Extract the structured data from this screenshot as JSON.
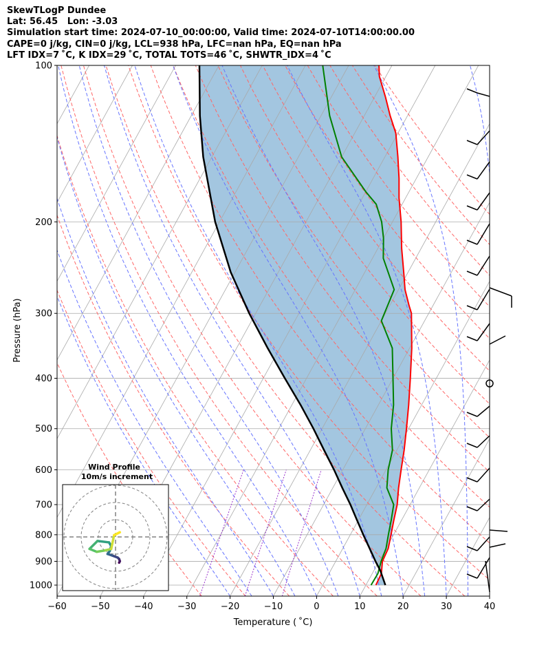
{
  "header": {
    "line1": "SkewTLogP Dundee",
    "line2": "Lat: 56.45   Lon: -3.03",
    "line3": "Simulation start time: 2024-07-10_00:00:00, Valid time: 2024-07-10T14:00:00.00",
    "line4": "CAPE=0 j/kg, CIN=0 j/kg, LCL=938 hPa, LFC=nan hPa, EQ=nan hPa",
    "line5": "LFT IDX=7 ˚C, K IDX=29 ˚C, TOTAL TOTS=46 ˚C, SHWTR_IDX=4 ˚C"
  },
  "chart_data": {
    "type": "line",
    "title": "SkewTLogP Dundee",
    "xlabel": "Temperature ( ˚C)",
    "ylabel": "Pressure (hPa)",
    "xlim": [
      -60,
      40
    ],
    "ylim": [
      1050,
      100
    ],
    "y_scale": "log",
    "x_ticks": [
      "−60",
      "−50",
      "−40",
      "−30",
      "−20",
      "−10",
      "0",
      "10",
      "20",
      "30",
      "40"
    ],
    "x_tick_values": [
      -60,
      -50,
      -40,
      -30,
      -20,
      -10,
      0,
      10,
      20,
      30,
      40
    ],
    "y_ticks": [
      "1000",
      "900",
      "800",
      "700",
      "600",
      "500",
      "400",
      "300",
      "200",
      "100"
    ],
    "y_tick_values": [
      1000,
      900,
      800,
      700,
      600,
      500,
      400,
      300,
      200,
      100
    ],
    "grid": true,
    "series": [
      {
        "role": "temperature",
        "color": "#ff0000",
        "points": [
          [
            1000,
            12.3
          ],
          [
            950,
            12.1
          ],
          [
            900,
            10.8
          ],
          [
            850,
            10.5
          ],
          [
            800,
            9.4
          ],
          [
            750,
            8.2
          ],
          [
            700,
            7.0
          ],
          [
            650,
            5.2
          ],
          [
            600,
            3.5
          ],
          [
            550,
            1.7
          ],
          [
            500,
            -0.5
          ],
          [
            450,
            -3.0
          ],
          [
            400,
            -6.0
          ],
          [
            350,
            -9.5
          ],
          [
            300,
            -14.0
          ],
          [
            290,
            -15.5
          ],
          [
            270,
            -18.5
          ],
          [
            250,
            -21.0
          ],
          [
            225,
            -24.5
          ],
          [
            200,
            -28.0
          ],
          [
            180,
            -31.5
          ],
          [
            165,
            -34.0
          ],
          [
            150,
            -37.0
          ],
          [
            135,
            -40.5
          ],
          [
            125,
            -44.0
          ],
          [
            115,
            -47.5
          ],
          [
            105,
            -51.5
          ],
          [
            100,
            -53.0
          ]
        ]
      },
      {
        "role": "dewpoint",
        "color": "#008000",
        "points": [
          [
            1000,
            11.2
          ],
          [
            950,
            11.3
          ],
          [
            900,
            10.5
          ],
          [
            850,
            10.0
          ],
          [
            800,
            8.8
          ],
          [
            750,
            7.6
          ],
          [
            700,
            6.2
          ],
          [
            650,
            2.5
          ],
          [
            600,
            0.5
          ],
          [
            550,
            -1.0
          ],
          [
            500,
            -4.0
          ],
          [
            450,
            -6.5
          ],
          [
            400,
            -10.0
          ],
          [
            350,
            -14.0
          ],
          [
            310,
            -20.0
          ],
          [
            270,
            -21.0
          ],
          [
            235,
            -27.5
          ],
          [
            215,
            -30.0
          ],
          [
            200,
            -32.5
          ],
          [
            185,
            -36.0
          ],
          [
            175,
            -40.0
          ],
          [
            150,
            -50.0
          ],
          [
            125,
            -58.0
          ],
          [
            100,
            -66.0
          ]
        ]
      },
      {
        "role": "parcel",
        "color": "#000000",
        "points": [
          [
            1000,
            14.5
          ],
          [
            938,
            11.5
          ],
          [
            900,
            9.2
          ],
          [
            850,
            6.2
          ],
          [
            800,
            3.0
          ],
          [
            750,
            -0.3
          ],
          [
            700,
            -3.8
          ],
          [
            650,
            -7.8
          ],
          [
            600,
            -12.0
          ],
          [
            550,
            -16.8
          ],
          [
            500,
            -22.0
          ],
          [
            450,
            -28.0
          ],
          [
            400,
            -35.0
          ],
          [
            350,
            -42.8
          ],
          [
            300,
            -51.5
          ],
          [
            250,
            -61.0
          ],
          [
            200,
            -71.0
          ],
          [
            150,
            -82.0
          ],
          [
            125,
            -88.0
          ],
          [
            100,
            -94.5
          ]
        ]
      }
    ]
  },
  "hodograph": {
    "title_line1": "Wind Profile",
    "title_line2": "10m/s increment",
    "points": [
      [
        0.5,
        -0.7
      ],
      [
        0.6,
        -0.5
      ],
      [
        0.5,
        -0.2
      ],
      [
        0.3,
        0.0
      ],
      [
        -0.5,
        0.3
      ],
      [
        -1.1,
        0.5
      ],
      [
        -0.8,
        0.9
      ],
      [
        -0.6,
        1.6
      ],
      [
        -0.9,
        2.1
      ],
      [
        -2.5,
        2.3
      ],
      [
        -3.6,
        1.2
      ],
      [
        -2.6,
        0.8
      ],
      [
        -1.4,
        1.0
      ],
      [
        -0.6,
        1.2
      ],
      [
        -0.2,
        3.1
      ],
      [
        0.6,
        3.5
      ]
    ]
  },
  "colors": {
    "cape_fill": "#a3c6e0",
    "isotherm": "#a9a9a9",
    "dry_adiabat": "#ff6666",
    "moist_adiabat": "#6674ff",
    "mixing_ratio": "#9933cc"
  }
}
